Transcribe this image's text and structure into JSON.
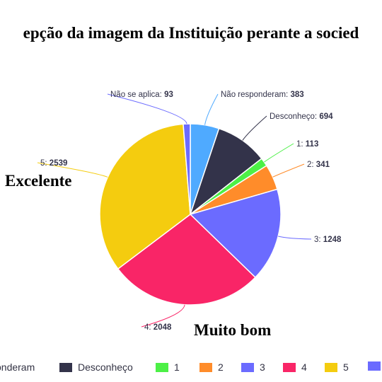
{
  "chart_data": {
    "type": "pie",
    "title": "epção da imagem da Instituição perante a socied",
    "slices": [
      {
        "label": "Não responderam",
        "value": 383,
        "color": "#4faaff"
      },
      {
        "label": "Desconheço",
        "value": 694,
        "color": "#33334a"
      },
      {
        "label": "1",
        "value": 113,
        "color": "#4cf046"
      },
      {
        "label": "2",
        "value": 341,
        "color": "#ff8c2a"
      },
      {
        "label": "3",
        "value": 1248,
        "color": "#6b6bff"
      },
      {
        "label": "4",
        "value": 2048,
        "color": "#f92567"
      },
      {
        "label": "5",
        "value": 2539,
        "color": "#f4cc0f"
      },
      {
        "label": "Não se aplica",
        "value": 93,
        "color": "#6b6bff"
      }
    ],
    "legend_position": "bottom",
    "legend": [
      {
        "label": "onderam",
        "color": "#4faaff"
      },
      {
        "label": "Desconheço",
        "color": "#33334a"
      },
      {
        "label": "1",
        "color": "#4cf046"
      },
      {
        "label": "2",
        "color": "#ff8c2a"
      },
      {
        "label": "3",
        "color": "#6b6bff"
      },
      {
        "label": "4",
        "color": "#f92567"
      },
      {
        "label": "5",
        "color": "#f4cc0f"
      },
      {
        "label": "",
        "color": "#6b6bff"
      }
    ],
    "annotations": {
      "excelente": "Excelente",
      "muito_bom": "Muito bom"
    }
  }
}
